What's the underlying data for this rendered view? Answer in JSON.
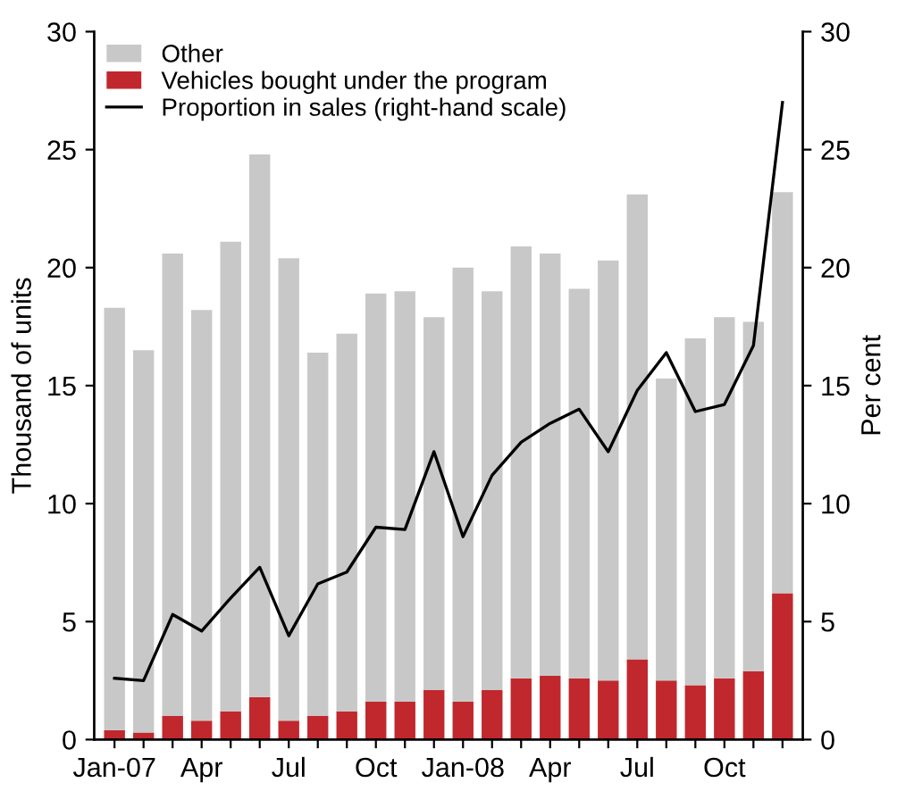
{
  "chart_data": {
    "type": "bar",
    "stacked": true,
    "ylabel": "Thousand of units",
    "y2label": "Per cent",
    "categories": [
      "Jan-07",
      null,
      null,
      "Apr",
      null,
      null,
      "Jul",
      null,
      null,
      "Oct",
      null,
      null,
      "Jan-08",
      null,
      null,
      "Apr",
      null,
      null,
      "Jul",
      null,
      null,
      "Oct",
      null,
      null
    ],
    "series": [
      {
        "name": "Vehicles bought under the program",
        "color": "#c0282d",
        "values": [
          0.4,
          0.3,
          1.0,
          0.8,
          1.2,
          1.8,
          0.8,
          1.0,
          1.2,
          1.6,
          1.6,
          2.1,
          1.6,
          2.1,
          2.6,
          2.7,
          2.6,
          2.5,
          3.4,
          2.5,
          2.3,
          2.6,
          2.9,
          6.2
        ]
      },
      {
        "name": "Other",
        "color": "#c8c8c8",
        "values": [
          17.9,
          16.2,
          19.6,
          17.4,
          19.9,
          23.0,
          19.6,
          15.4,
          16.0,
          17.3,
          17.4,
          15.8,
          18.4,
          16.9,
          18.3,
          17.9,
          16.5,
          17.8,
          19.7,
          12.8,
          14.7,
          15.3,
          14.8,
          17.0
        ]
      },
      {
        "name": "Proportion in sales (right-hand scale)",
        "type": "line",
        "axis": "y2",
        "color": "#000000",
        "values": [
          2.6,
          2.5,
          5.3,
          4.6,
          6.0,
          7.3,
          4.4,
          6.6,
          7.1,
          9.0,
          8.9,
          12.2,
          8.6,
          11.2,
          12.6,
          13.4,
          14.0,
          12.2,
          14.8,
          16.4,
          13.9,
          14.2,
          16.7,
          27.0
        ]
      }
    ],
    "ylim": [
      0,
      30
    ],
    "yticks": [
      0,
      5,
      10,
      15,
      20,
      25,
      30
    ],
    "y2lim": [
      0,
      30
    ],
    "y2ticks": [
      0,
      5,
      10,
      15,
      20,
      25,
      30
    ],
    "legend": "top left",
    "grid": false
  }
}
